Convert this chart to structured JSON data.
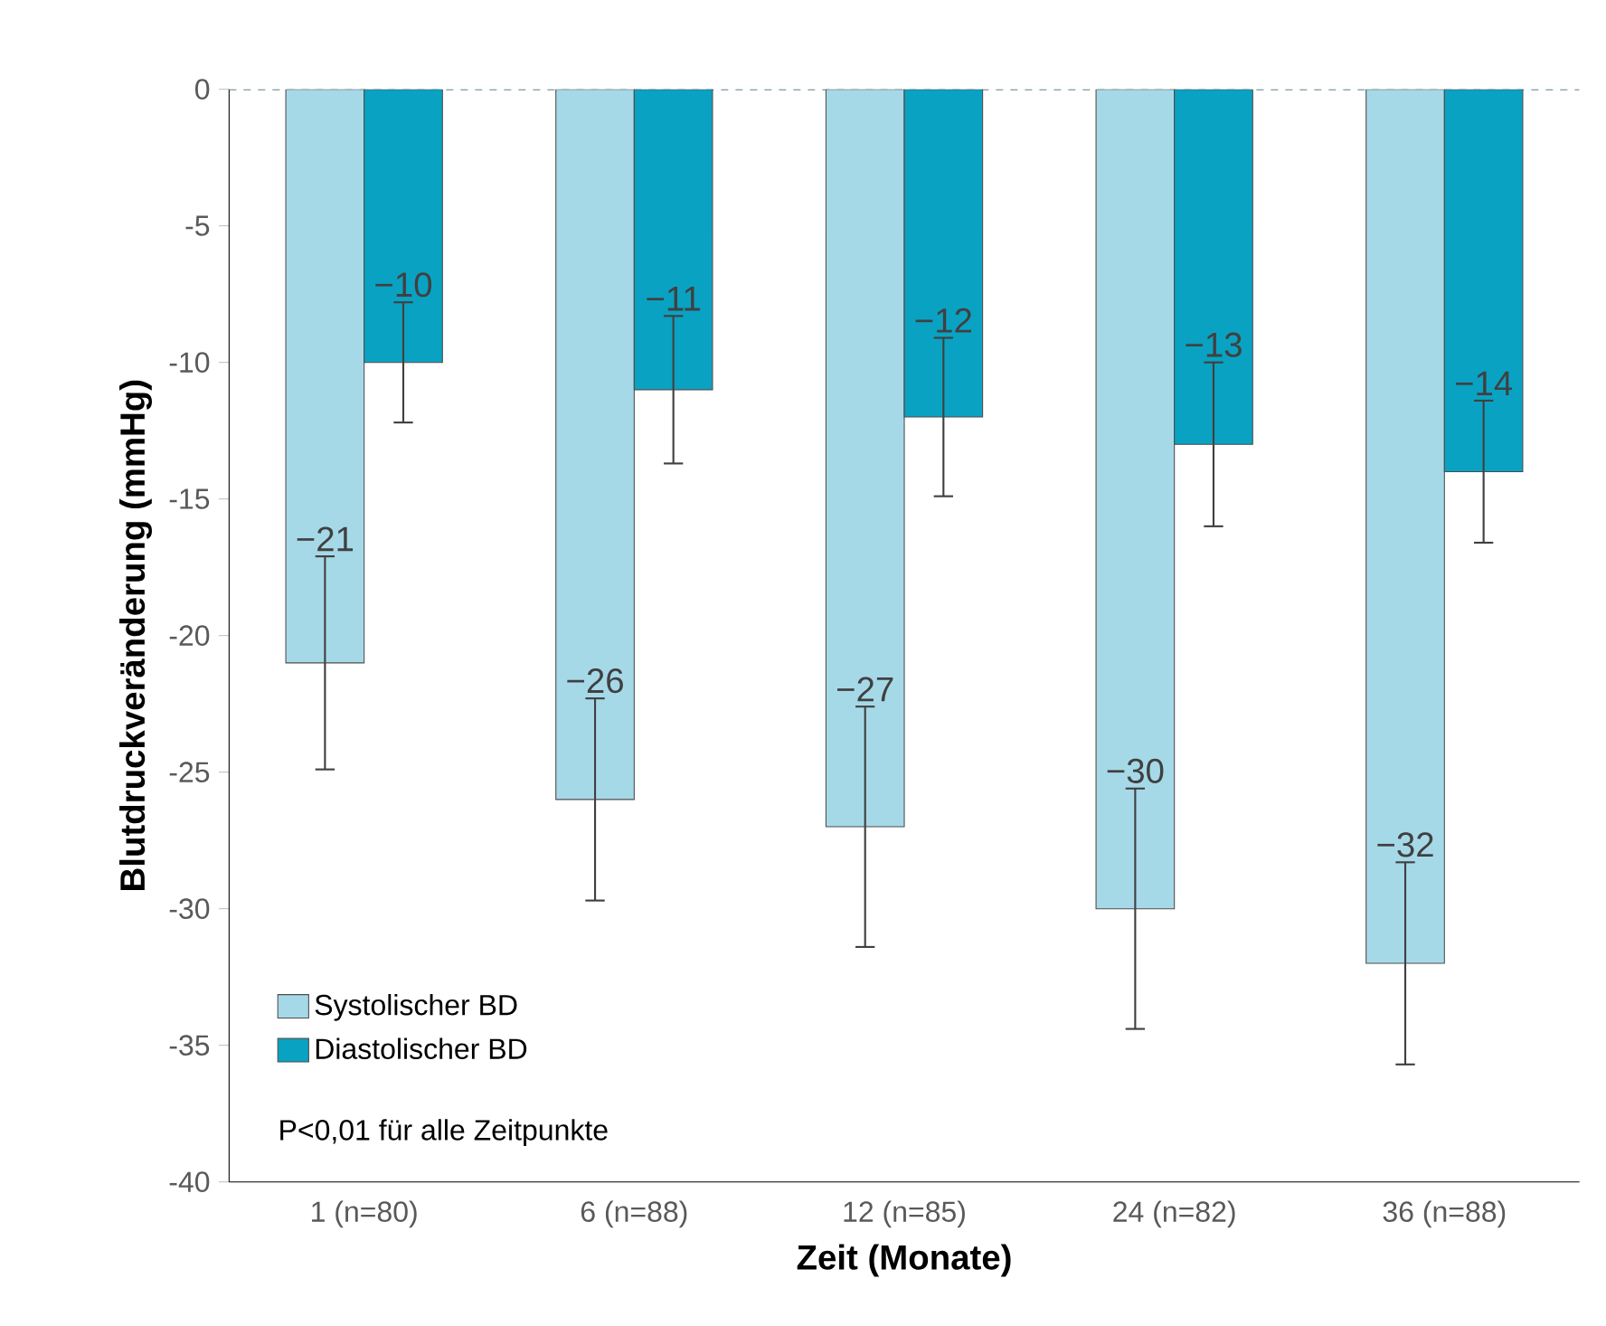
{
  "chart_data": {
    "type": "bar",
    "xlabel": "Zeit  (Monate)",
    "ylabel": "Blutdruckveränderung  (mmHg)",
    "categories": [
      "1 (n=80)",
      "6 (n=88)",
      "12 (n=85)",
      "24 (n=82)",
      "36 (n=88)"
    ],
    "series": [
      {
        "name": "Systolischer BD",
        "color": "#a6d9e8",
        "values": [
          -21,
          -26,
          -27,
          -30,
          -32
        ],
        "errors": [
          3.9,
          3.7,
          4.4,
          4.4,
          3.7
        ]
      },
      {
        "name": "Diastolischer BD",
        "color": "#0aa2c2",
        "values": [
          -10,
          -11,
          -12,
          -13,
          -14
        ],
        "errors": [
          2.2,
          2.7,
          2.9,
          3.0,
          2.6
        ]
      }
    ],
    "ylim": [
      -40,
      0
    ],
    "yticks": [
      -40,
      -35,
      -30,
      -25,
      -20,
      -15,
      -10,
      -5,
      0
    ],
    "ref_lines": [
      {
        "axis": "y",
        "value": 0,
        "line_style": "dashed",
        "color": "#5a7f90"
      }
    ],
    "data_labels": true,
    "legend": "bottom left",
    "grid": false,
    "annotations": [
      "P<0,01 für alle Zeitpunkte"
    ]
  }
}
